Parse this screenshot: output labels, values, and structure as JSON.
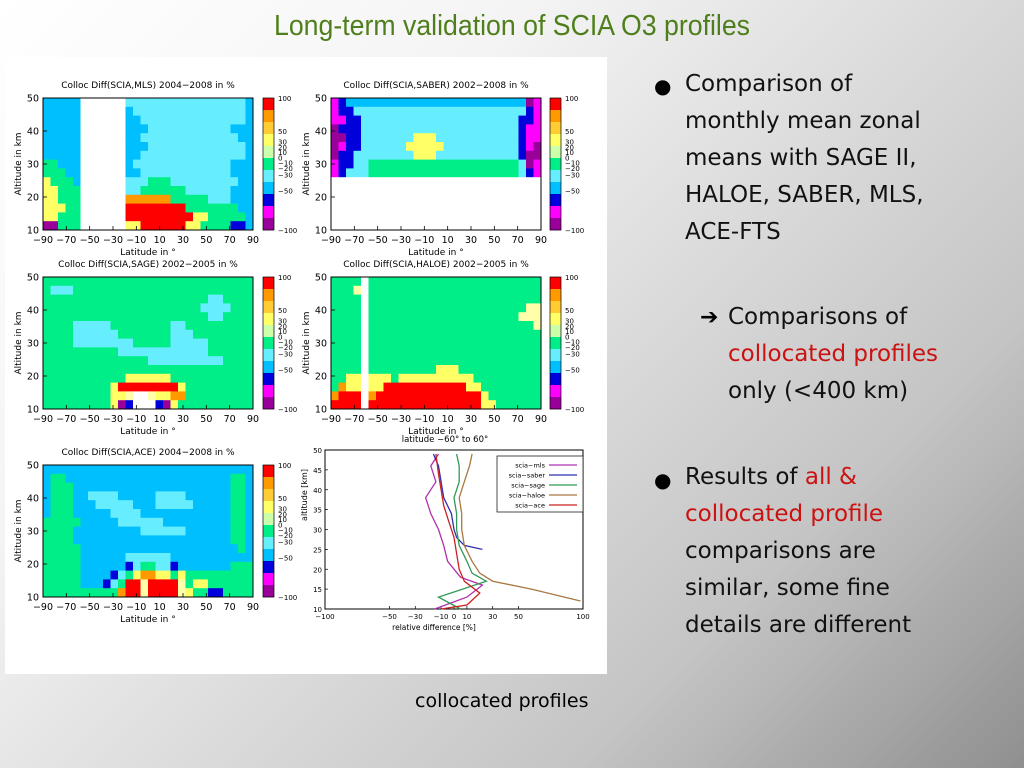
{
  "slide": {
    "title": "Long-term validation of SCIA O3 profiles",
    "caption": "collocated profiles",
    "bullet1_lines": [
      "Comparison of",
      "monthly mean zonal",
      "means with SAGE II,",
      "HALOE, SABER, MLS,",
      "ACE-FTS"
    ],
    "sub_lines": [
      "Comparisons of",
      "collocated profiles",
      "only (<400 km)"
    ],
    "bullet2_parts": [
      {
        "text": "Results of ",
        "red": false
      },
      {
        "text": "all &",
        "red": true
      }
    ],
    "bullet2_lines": [
      {
        "parts": [
          {
            "text": "Results of ",
            "red": false
          },
          {
            "text": "all &",
            "red": true
          }
        ]
      },
      {
        "parts": [
          {
            "text": "collocated profile",
            "red": true
          }
        ]
      },
      {
        "parts": [
          {
            "text": "comparisons are",
            "red": false
          }
        ]
      },
      {
        "parts": [
          {
            "text": "similar, some fine",
            "red": false
          }
        ]
      },
      {
        "parts": [
          {
            "text": "details are different",
            "red": false
          }
        ]
      }
    ],
    "accent_red": "#cc1111",
    "title_color": "#4f7f1c"
  },
  "chart_data": [
    {
      "type": "heatmap",
      "title": "Colloc Diff(SCIA,MLS) 2004−2008 in %",
      "xlabel": "Latitude in °",
      "ylabel": "Altitude in km",
      "xlim": [
        -90,
        90
      ],
      "ylim": [
        10,
        50
      ],
      "xticks": [
        -90,
        -70,
        -50,
        -30,
        -10,
        10,
        30,
        50,
        70,
        90
      ],
      "yticks": [
        10,
        20,
        30,
        40,
        50
      ],
      "colorbar_ticks": [
        "100",
        "50",
        "30",
        "20",
        "10",
        "0",
        "−10",
        "−20",
        "−30",
        "−50",
        "−100"
      ],
      "grid_rows": [
        "CCCCC......LLLLLLLLLLLLLLLLC",
        "CCCCC......CLLLLLLLLLLLLLLLC",
        "CCCCC......CCLLLLLLLLLLLLLLC",
        "CCCCC......CCCLLLLLLLLLLLCCC",
        "CCCCC......CCLLLLLLLLLLLLLCC",
        "CCCCC......CCCLLLLLLLLLLLLLC",
        "CCCCC......CCLLLLLLLLLLLLLLC",
        "GGCCC......CLLLLLLLLLLLLLCCC",
        "GGGCC......CCLLLLLLLLLLLLCCC",
        "YGGGC......LLLGGGLLLLLLLLLCC",
        "YYGGG......LLGGGGGGLLLLLLCCC",
        "YYGGG......OOOOOOGGGGGLLLCCC",
        "YYYGG......RRRRRRRRGGGGGGGCC",
        "YYGGG......RRRRRRRRRYYGGGGGC",
        "PPGGG......YYRRRRRRYYGGGGBBC"
      ],
      "category": "altitude-latitude"
    },
    {
      "type": "heatmap",
      "title": "Colloc Diff(SCIA,SABER) 2002−2008 in %",
      "xlabel": "Latitude in °",
      "ylabel": "Altitude in km",
      "xlim": [
        -90,
        90
      ],
      "ylim": [
        10,
        50
      ],
      "xticks": [
        -90,
        -70,
        -50,
        -30,
        -10,
        10,
        30,
        50,
        70,
        90
      ],
      "yticks": [
        10,
        20,
        30,
        40,
        50
      ],
      "colorbar_ticks": [
        "100",
        "50",
        "30",
        "20",
        "10",
        "0",
        "−10",
        "−20",
        "−30",
        "−50",
        "−100"
      ],
      "grid_rows": [
        "MBCCCCCCCCCCCCCCCCCCCCCCCCPM",
        "MBBLLLLLLLLLLLLLLLLLLLLLLLBM",
        "MMBBLLLLLLLLLLLLLLLLLLLLLBBM",
        "PBBBLLLLLLLLLLLLLLLLLLLLLBMM",
        "PPBBLLLLLLLYYYLLLLLLLLLLLBMM",
        "PMBBLLLLLLYYYYYLLLLLLLLLLBMP",
        "PBBLLLLLLLLYYYLLLLLLLLLLLBPP",
        "MBBLLGGGGGGGGGGGGGGGGGGGGLPM",
        "MBLLLGGGGGGGGGGGGGGGGGGGGLBM",
        "............................",
        "............................",
        "............................",
        "............................",
        "............................",
        "............................"
      ],
      "category": "altitude-latitude"
    },
    {
      "type": "heatmap",
      "title": "Colloc Diff(SCIA,SAGE) 2002−2005 in %",
      "xlabel": "Latitude in °",
      "ylabel": "Altitude in km",
      "xlim": [
        -90,
        90
      ],
      "ylim": [
        10,
        50
      ],
      "xticks": [
        -90,
        -70,
        -50,
        -30,
        -10,
        10,
        30,
        50,
        70,
        90
      ],
      "yticks": [
        10,
        20,
        30,
        40,
        50
      ],
      "colorbar_ticks": [
        "100",
        "50",
        "30",
        "20",
        "10",
        "0",
        "−10",
        "−20",
        "−30",
        "−50",
        "−100"
      ],
      "grid_rows": [
        "GGGGGGGGGGGGGGGGGGGGGGGGGGGG",
        "GLLLGGGGGGGGGGGGGGGGGGGGGGGG",
        "GGGGGGGGGGGGGGGGGGGGGGLLGGGG",
        "GGGGGGGGGGGGGGGGGGGGGLLLLGGG",
        "GGGGGGGGGGGGGGGGGGGGGGLLGGGG",
        "GGGGLLLLLGGGGGGGGLLGGGGGGGGG",
        "GGGGLLLLLLGGGGGGGLLLGGGGGGGG",
        "GGGGLLLLLLLLGGGGGLLLLLGGGGGG",
        "GGGGGGGGGGLLLLLLLLLLLLGGGGGG",
        "GGGGGGGGGGGGGGLLLLLLLLLLGGGG",
        "GGGGGGGGGGGGGGGGGGGGGGGGGGGG",
        "GGGGGGGGGGGYYYYYYGGGGGGGGGGG",
        "GGGGGGGGGYRRRRRRRRYGGGGGGGGG",
        "GGGGGGGGGYYW..WYYOOGGGGGGGGG",
        "GGGGGGGGGYPB...BPYGGGGGGGGGG"
      ],
      "category": "altitude-latitude"
    },
    {
      "type": "heatmap",
      "title": "Colloc Diff(SCIA,HALOE) 2002−2005 in %",
      "xlabel": "Latitude in °",
      "ylabel": "Altitude in km",
      "xlim": [
        -90,
        90
      ],
      "ylim": [
        10,
        50
      ],
      "xticks": [
        -90,
        -70,
        -50,
        -30,
        -10,
        10,
        30,
        50,
        70,
        90
      ],
      "yticks": [
        10,
        20,
        30,
        40,
        50
      ],
      "colorbar_ticks": [
        "100",
        "50",
        "30",
        "20",
        "10",
        "0",
        "−10",
        "−20",
        "−30",
        "−50",
        "−100"
      ],
      "grid_rows": [
        "GGGG.GGGGGGGGGGGGGGGGGGGGGGG",
        "GGGW.GGGGGGGGGGGGGGGGGGGGGGG",
        "GGGG.GGGGGGGGGGGGGGGGGGGGGGG",
        "GGGG.GGGGGGGGGGGGGGGGGGGGGWW",
        "GGGG.GGGGGGGGGGGGGGGGGGGGWWW",
        "GGGG.GGGGGGGGGGGGGGGGGGGGGGW",
        "GGGG.GGGGGGGGGGGGGGGGGGGGGGG",
        "GGGG.GGGGGGGGGGGGGGGGGGGGGGG",
        "GGGG.GGGGGGGGGGGGGGGGGGGGGGG",
        "GGGG.GGGGGGGGGGGGGGGGGGGGGGG",
        "GGGG.GGGGGGGGGYYYGGGGGGGGGGG",
        "GGYY.YYYGYYYYYYYYYYGGGGGGGGG",
        "GOYY.YYRRRRRRRRRRRYYGGGGGGGG",
        "ORRR.ORRRRRRRRRRRRRRYGGGGGGG",
        "RRRR.RRRRRRRRRRRRRRRYYGGGGGG"
      ],
      "category": "altitude-latitude"
    },
    {
      "type": "heatmap",
      "title": "Colloc Diff(SCIA,ACE) 2004−2008 in %",
      "xlabel": "Latitude in °",
      "ylabel": "Altitude in km",
      "xlim": [
        -90,
        90
      ],
      "ylim": [
        10,
        50
      ],
      "xticks": [
        -90,
        -70,
        -50,
        -30,
        -10,
        10,
        30,
        50,
        70,
        90
      ],
      "yticks": [
        10,
        20,
        30,
        40,
        50
      ],
      "colorbar_ticks": [
        "100",
        "50",
        "30",
        "20",
        "10",
        "0",
        "−10",
        "−20",
        "−30",
        "−50",
        "−100"
      ],
      "grid_rows": [
        "CCCCCCCCCCCCCCCCCCCCCCCCCCCC",
        "CGGCCCCCCCCCCCCCCCCCCCCCCGGC",
        "CGGGCCCCCCCCCCCCCCCCCCCCCGGC",
        "CGGGCCLLLLCCCCCLLLLCCCCCCGGC",
        "CGGGCCCLLLLLCCCLLLLLCCCCCGGC",
        "CGGGCCCCCLLLLCCCCCCCCCCCCGGC",
        "GGGGGCCCCCLLLLLLCCCCCCCCCGGC",
        "GGGGCCCCCCCCCLLLLLLCCCCCCGGC",
        "GGGGCCCCCCCCCCCCCCCCCCCCCGGC",
        "GGGGGCCCCCCCCCCCCCCCCCCCCCGC",
        "GGGGGCCCCCCLLLLLLCCCCCCCCCCC",
        "GGGGGCCCCCCBLGGLLBCCCCCCCGGG",
        "GGGGGCCCCBLGYOOYYGYGGGGGGGGG",
        "GGGGGCCCBLGRRWRRRRWGYYGGGGGG",
        "GGGGGGGGGGORRWRRRRWYGGBBGGGG"
      ],
      "category": "altitude-latitude"
    },
    {
      "type": "line",
      "title": "",
      "xlabel": "relative difference [%]",
      "ylabel": "altitude [km]",
      "subtitle": "latitude −60° to 60°",
      "xlim": [
        -100,
        100
      ],
      "ylim": [
        10,
        50
      ],
      "xticks": [
        -100,
        -50,
        -30,
        -10,
        0,
        10,
        30,
        50,
        100
      ],
      "yticks": [
        10,
        15,
        20,
        25,
        30,
        35,
        40,
        45,
        50
      ],
      "legend": "top-right",
      "series": [
        {
          "name": "scia−mls",
          "color": "#b030b0",
          "values": [
            [
              -15,
              10
            ],
            [
              10,
              13
            ],
            [
              22,
              16
            ],
            [
              5,
              18
            ],
            [
              -5,
              22
            ],
            [
              -8,
              26
            ],
            [
              -12,
              30
            ],
            [
              -18,
              34
            ],
            [
              -22,
              38
            ],
            [
              -14,
              42
            ],
            [
              -18,
              46
            ],
            [
              -12,
              49
            ]
          ]
        },
        {
          "name": "scia−saber",
          "color": "#3030b0",
          "values": [
            [
              22,
              25
            ],
            [
              8,
              26
            ],
            [
              2,
              28
            ],
            [
              0,
              30
            ],
            [
              -2,
              34
            ],
            [
              -8,
              38
            ],
            [
              -10,
              42
            ],
            [
              -12,
              46
            ],
            [
              -16,
              49
            ]
          ]
        },
        {
          "name": "scia−sage",
          "color": "#2f9a55",
          "values": [
            [
              5,
              10
            ],
            [
              -12,
              13
            ],
            [
              25,
              17
            ],
            [
              14,
              19
            ],
            [
              10,
              22
            ],
            [
              4,
              26
            ],
            [
              2,
              30
            ],
            [
              2,
              34
            ],
            [
              0,
              38
            ],
            [
              4,
              42
            ],
            [
              4,
              46
            ],
            [
              2,
              49
            ]
          ]
        },
        {
          "name": "scia−haloe",
          "color": "#a87840",
          "values": [
            [
              98,
              12
            ],
            [
              60,
              15
            ],
            [
              30,
              17
            ],
            [
              20,
              19
            ],
            [
              14,
              22
            ],
            [
              8,
              26
            ],
            [
              6,
              30
            ],
            [
              6,
              34
            ],
            [
              4,
              38
            ],
            [
              8,
              42
            ],
            [
              12,
              46
            ],
            [
              14,
              49
            ]
          ]
        },
        {
          "name": "scia−ace",
          "color": "#cc2020",
          "values": [
            [
              -10,
              10
            ],
            [
              10,
              11
            ],
            [
              20,
              14
            ],
            [
              8,
              17
            ],
            [
              4,
              20
            ],
            [
              2,
              24
            ],
            [
              0,
              28
            ],
            [
              -4,
              32
            ],
            [
              -8,
              36
            ],
            [
              -10,
              40
            ],
            [
              -12,
              44
            ],
            [
              -14,
              49
            ]
          ]
        }
      ]
    }
  ]
}
